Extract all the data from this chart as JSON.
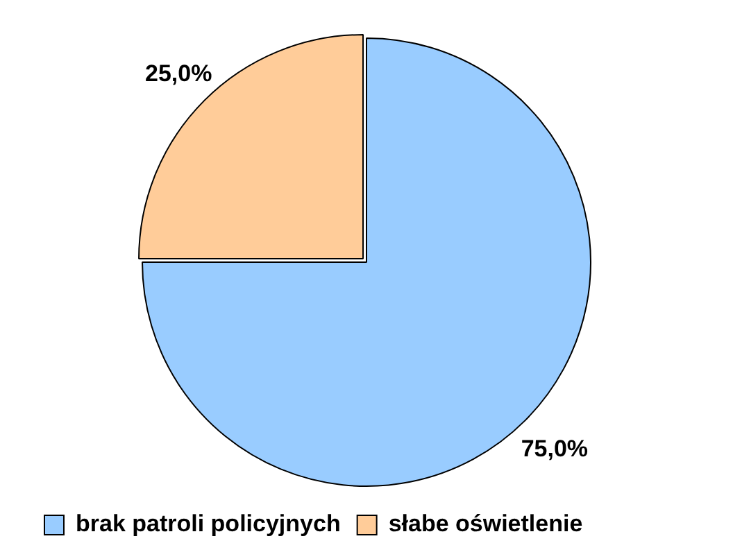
{
  "chart_data": {
    "type": "pie",
    "categories": [
      "brak patroli policyjnych",
      "słabe oświetlenie"
    ],
    "values": [
      75,
      25
    ],
    "colors": [
      "#99ccff",
      "#ffcc99"
    ],
    "value_labels": [
      "75,0%",
      "25,0%"
    ],
    "legend": "bottom"
  }
}
